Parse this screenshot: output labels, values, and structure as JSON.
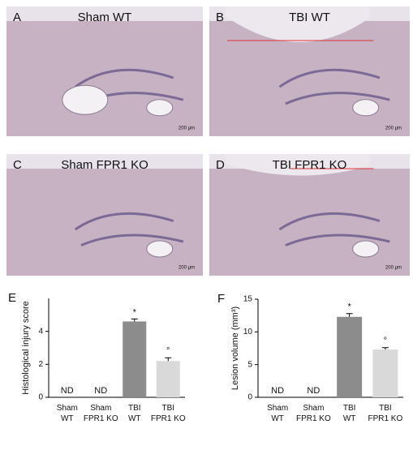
{
  "panels": [
    {
      "letter": "A",
      "title": "Sham WT",
      "scale_bar": "200 μm"
    },
    {
      "letter": "B",
      "title": "TBI WT",
      "scale_bar": "200 μm"
    },
    {
      "letter": "C",
      "title": "Sham FPR1 KO",
      "scale_bar": "200 μm"
    },
    {
      "letter": "D",
      "title": "TBI FPR1 KO",
      "scale_bar": "200 μm"
    }
  ],
  "chart_data": [
    {
      "type": "bar",
      "label": "E",
      "ylabel": "Histological injury score",
      "categories": [
        "Sham WT",
        "Sham FPR1 KO",
        "TBI WT",
        "TBI FPR1 KO"
      ],
      "values": [
        null,
        null,
        4.6,
        2.2
      ],
      "errors": [
        null,
        null,
        0.15,
        0.2
      ],
      "annotations": [
        "ND",
        "ND",
        "*",
        "°"
      ],
      "colors": [
        "#8c8c8c",
        "#8c8c8c",
        "#8c8c8c",
        "#d9d9d9"
      ],
      "ylim": [
        0,
        6
      ],
      "yticks": [
        0,
        2,
        4
      ]
    },
    {
      "type": "bar",
      "label": "F",
      "ylabel": "Lesion volume (mm³)",
      "categories": [
        "Sham WT",
        "Sham FPR1 KO",
        "TBI WT",
        "TBI FPR1 KO"
      ],
      "values": [
        null,
        null,
        12.3,
        7.3
      ],
      "errors": [
        null,
        null,
        0.5,
        0.3
      ],
      "annotations": [
        "ND",
        "ND",
        "*",
        "°"
      ],
      "colors": [
        "#8c8c8c",
        "#8c8c8c",
        "#8c8c8c",
        "#d9d9d9"
      ],
      "ylim": [
        0,
        15
      ],
      "yticks": [
        0,
        5,
        10,
        15
      ]
    }
  ]
}
